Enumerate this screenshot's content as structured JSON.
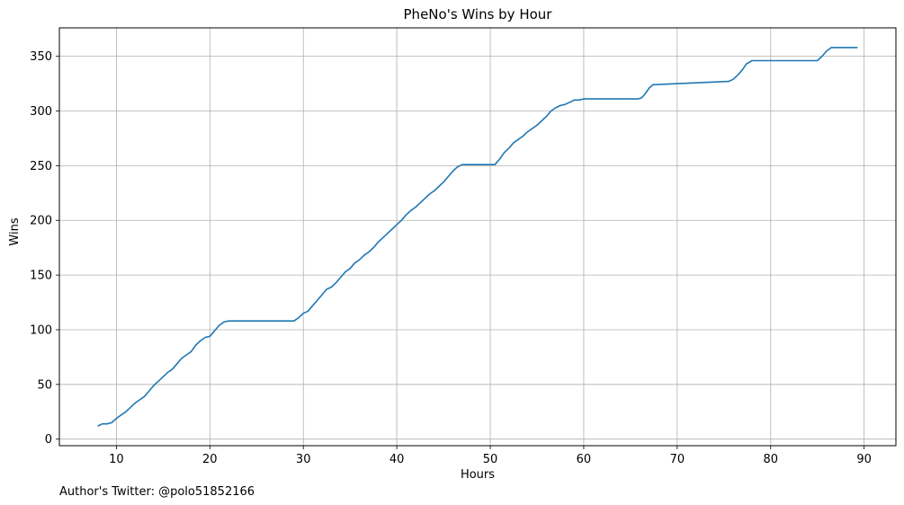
{
  "chart_data": {
    "type": "line",
    "title": "PheNo's Wins by Hour",
    "xlabel": "Hours",
    "ylabel": "Wins",
    "xlim": [
      3.9,
      93.4
    ],
    "ylim": [
      -6,
      376
    ],
    "xticks": [
      10,
      20,
      30,
      40,
      50,
      60,
      70,
      80,
      90
    ],
    "yticks": [
      0,
      50,
      100,
      150,
      200,
      250,
      300,
      350
    ],
    "grid": true,
    "line_color": "#1f77b4",
    "series": [
      {
        "x": [
          8.0,
          8.5,
          9.0,
          9.5,
          10.0,
          10.5,
          11.0,
          11.5,
          12.0,
          12.5,
          13.0,
          13.5,
          14.0,
          14.5,
          15.0,
          15.5,
          16.0,
          16.5,
          17.0,
          17.5,
          18.0,
          18.5,
          19.0,
          19.5,
          20.0,
          20.5,
          21.0,
          21.5,
          22.0,
          23.0,
          24.0,
          25.0,
          26.0,
          27.0,
          28.0,
          29.0,
          29.5,
          30.0,
          30.5,
          31.0,
          31.5,
          32.0,
          32.5,
          33.0,
          33.5,
          34.0,
          34.5,
          35.0,
          35.5,
          36.0,
          36.5,
          37.0,
          37.5,
          38.0,
          38.5,
          39.0,
          39.5,
          40.0,
          40.5,
          41.0,
          41.5,
          42.0,
          42.5,
          43.0,
          43.5,
          44.0,
          44.5,
          45.0,
          45.5,
          46.0,
          46.5,
          47.0,
          48.0,
          49.0,
          50.0,
          50.5,
          51.0,
          51.5,
          52.0,
          52.5,
          53.0,
          53.5,
          54.0,
          54.5,
          55.0,
          55.5,
          56.0,
          56.5,
          57.0,
          57.5,
          58.0,
          58.5,
          59.0,
          59.5,
          60.0,
          61.0,
          62.0,
          63.0,
          64.0,
          65.0,
          65.8,
          66.2,
          66.6,
          67.0,
          67.4,
          70.0,
          75.5,
          76.0,
          76.5,
          77.0,
          77.4,
          78.0,
          80.0,
          82.0,
          84.0,
          85.0,
          85.5,
          86.0,
          86.5,
          87.0,
          88.0,
          89.3
        ],
        "y": [
          12,
          14,
          14,
          15,
          19,
          22,
          25,
          29,
          33,
          36,
          39,
          44,
          49,
          53,
          57,
          61,
          64,
          69,
          74,
          77,
          80,
          86,
          90,
          93,
          94,
          99,
          104,
          107,
          108,
          108,
          108,
          108,
          108,
          108,
          108,
          108,
          111,
          115,
          117,
          122,
          127,
          132,
          137,
          139,
          143,
          148,
          153,
          156,
          161,
          164,
          168,
          171,
          175,
          180,
          184,
          188,
          192,
          196,
          200,
          205,
          209,
          212,
          216,
          220,
          224,
          227,
          231,
          235,
          240,
          245,
          249,
          251,
          251,
          251,
          251,
          251,
          256,
          262,
          266,
          271,
          274,
          277,
          281,
          284,
          287,
          291,
          295,
          300,
          303,
          305,
          306,
          308,
          310,
          310,
          311,
          311,
          311,
          311,
          311,
          311,
          311,
          312,
          316,
          321,
          324,
          325,
          327,
          329,
          333,
          338,
          343,
          346,
          346,
          346,
          346,
          346,
          350,
          355,
          358,
          358,
          358,
          358
        ]
      }
    ]
  },
  "footer": {
    "author": "Author's Twitter: @polo51852166"
  }
}
